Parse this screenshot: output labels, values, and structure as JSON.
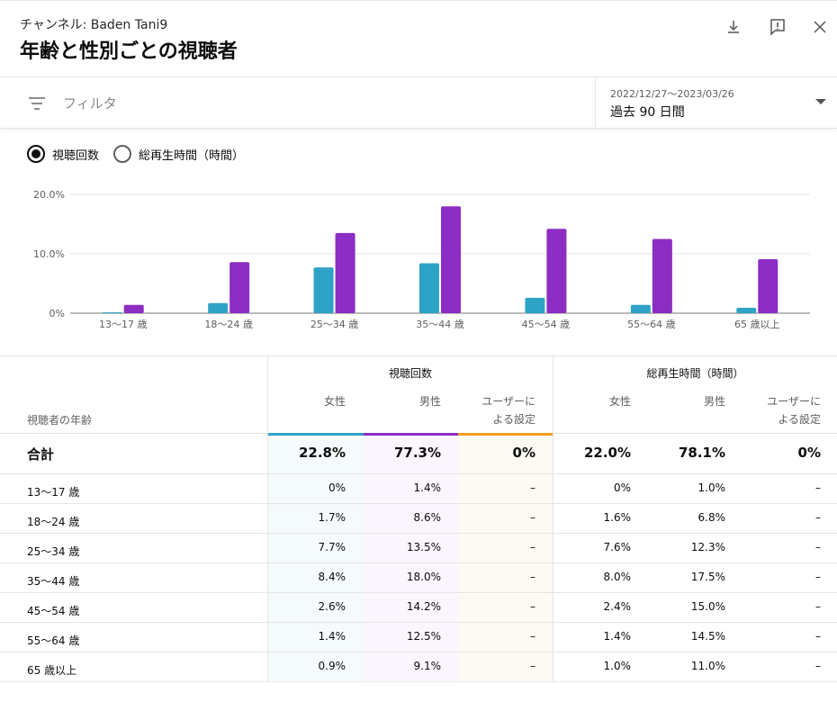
{
  "header": {
    "channel": "チャンネル: Baden Tani9",
    "title": "年齢と性別ごとの視聴者",
    "icons": [
      "download-icon",
      "feedback-icon",
      "close-icon"
    ]
  },
  "filter": {
    "label": "フィルタ",
    "date_range": "2022/12/27～2023/03/26",
    "date_label": "過去 90 日間"
  },
  "metric_toggle": {
    "options": [
      {
        "label": "視聴回数",
        "checked": true
      },
      {
        "label": "総再生時間（時間）",
        "checked": false
      }
    ]
  },
  "colors": {
    "female": "#2ea3c6",
    "male": "#8c2dc4",
    "user_defined": "#f2a01f"
  },
  "chart_data": {
    "type": "bar",
    "categories": [
      "13～17 歳",
      "18～24 歳",
      "25～34 歳",
      "35～44 歳",
      "45～54 歳",
      "55～64 歳",
      "65 歳以上"
    ],
    "series": [
      {
        "name": "女性",
        "values": [
          0,
          1.7,
          7.7,
          8.4,
          2.6,
          1.4,
          0.9
        ]
      },
      {
        "name": "男性",
        "values": [
          1.4,
          8.6,
          13.5,
          18.0,
          14.2,
          12.5,
          9.1
        ]
      }
    ],
    "yticks": [
      "0%",
      "10.0%",
      "20.0%"
    ],
    "ylim": [
      0,
      20
    ],
    "grid": true
  },
  "table": {
    "row_header_label": "視聴者の年齢",
    "groups": [
      "視聴回数",
      "総再生時間（時間）"
    ],
    "columns": [
      "女性",
      "男性",
      "ユーザーに",
      "よる設定"
    ],
    "total": {
      "label": "合計",
      "values": [
        "22.8%",
        "77.3%",
        "0%",
        "22.0%",
        "78.1%",
        "0%"
      ]
    },
    "rows": [
      {
        "age": "13～17 歳",
        "values": [
          "0%",
          "1.4%",
          "–",
          "0%",
          "1.0%",
          "–"
        ]
      },
      {
        "age": "18～24 歳",
        "values": [
          "1.7%",
          "8.6%",
          "–",
          "1.6%",
          "6.8%",
          "–"
        ]
      },
      {
        "age": "25～34 歳",
        "values": [
          "7.7%",
          "13.5%",
          "–",
          "7.6%",
          "12.3%",
          "–"
        ]
      },
      {
        "age": "35～44 歳",
        "values": [
          "8.4%",
          "18.0%",
          "–",
          "8.0%",
          "17.5%",
          "–"
        ]
      },
      {
        "age": "45～54 歳",
        "values": [
          "2.6%",
          "14.2%",
          "–",
          "2.4%",
          "15.0%",
          "–"
        ]
      },
      {
        "age": "55～64 歳",
        "values": [
          "1.4%",
          "12.5%",
          "–",
          "1.4%",
          "14.5%",
          "–"
        ]
      },
      {
        "age": "65 歳以上",
        "values": [
          "0.9%",
          "9.1%",
          "–",
          "1.0%",
          "11.0%",
          "–"
        ]
      }
    ]
  }
}
